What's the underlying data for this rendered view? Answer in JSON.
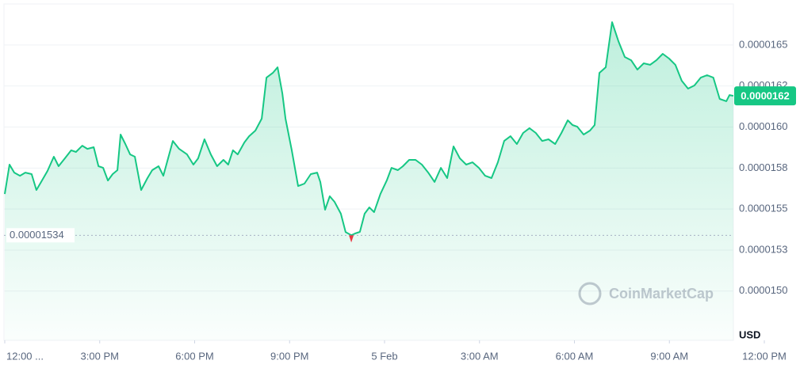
{
  "chart_data": {
    "type": "area",
    "currency": "USD",
    "watermark": "CoinMarketCap",
    "color": "#16c784",
    "low_color": "#ea3943",
    "grid": true,
    "xlim": [
      0,
      24
    ],
    "xticks": [
      {
        "value": 0,
        "label": "12:00 ..."
      },
      {
        "value": 3,
        "label": "3:00 PM"
      },
      {
        "value": 6,
        "label": "6:00 PM"
      },
      {
        "value": 9,
        "label": "9:00 PM"
      },
      {
        "value": 12,
        "label": "5 Feb"
      },
      {
        "value": 15,
        "label": "3:00 AM"
      },
      {
        "value": 18,
        "label": "6:00 AM"
      },
      {
        "value": 21,
        "label": "9:00 AM"
      },
      {
        "value": 24,
        "label": "12:00 PM"
      }
    ],
    "ylim": [
      1.47e-05,
      1.675e-05
    ],
    "yticks": [
      1.65e-05,
      {
        "value": 1.625e-05,
        "label": "0.0000162"
      },
      {
        "value": 1.6e-05,
        "label": "0.0000160"
      },
      {
        "value": 1.575e-05,
        "label": "0.0000158"
      },
      {
        "value": 1.55e-05,
        "label": "0.0000155"
      },
      {
        "value": 1.525e-05,
        "label": "0.0000153"
      },
      {
        "value": 1.5e-05,
        "label": "0.0000150"
      }
    ],
    "low": 1.534e-05,
    "current_price_label": "0.0000162",
    "x": [
      0,
      0.15,
      0.3,
      0.48,
      0.65,
      0.85,
      1,
      1.15,
      1.35,
      1.55,
      1.7,
      1.9,
      2.1,
      2.25,
      2.45,
      2.61,
      2.81,
      2.96,
      3.11,
      3.26,
      3.41,
      3.56,
      3.66,
      3.81,
      3.96,
      4.11,
      4.31,
      4.51,
      4.66,
      4.86,
      5.01,
      5.16,
      5.31,
      5.51,
      5.76,
      5.96,
      6.11,
      6.31,
      6.51,
      6.71,
      6.91,
      7.06,
      7.21,
      7.36,
      7.57,
      7.72,
      7.92,
      8.12,
      8.27,
      8.47,
      8.62,
      8.77,
      8.87,
      9.07,
      9.27,
      9.47,
      9.67,
      9.87,
      9.97,
      10.12,
      10.27,
      10.42,
      10.62,
      10.77,
      10.95,
      11.07,
      11.22,
      11.37,
      11.52,
      11.67,
      11.87,
      12.07,
      12.22,
      12.42,
      12.58,
      12.78,
      12.98,
      13.18,
      13.38,
      13.58,
      13.78,
      13.98,
      14.18,
      14.38,
      14.58,
      14.78,
      14.98,
      15.18,
      15.38,
      15.58,
      15.78,
      15.98,
      16.18,
      16.38,
      16.58,
      16.78,
      16.98,
      17.18,
      17.39,
      17.59,
      17.79,
      17.94,
      18.09,
      18.29,
      18.49,
      18.64,
      18.79,
      18.99,
      19.19,
      19.39,
      19.59,
      19.79,
      19.99,
      20.19,
      20.39,
      20.59,
      20.79,
      20.99,
      21.19,
      21.39,
      21.59,
      21.79,
      21.99,
      22.19,
      22.39,
      22.59,
      22.8,
      22.9,
      23.02
    ],
    "values": [
      1.5592e-05,
      1.5771e-05,
      1.5722e-05,
      1.5703e-05,
      1.5722e-05,
      1.5713e-05,
      1.5616e-05,
      1.5665e-05,
      1.5732e-05,
      1.5819e-05,
      1.5761e-05,
      1.5809e-05,
      1.5858e-05,
      1.5848e-05,
      1.5886e-05,
      1.5867e-05,
      1.5877e-05,
      1.5761e-05,
      1.5751e-05,
      1.5674e-05,
      1.5713e-05,
      1.5737e-05,
      1.5954e-05,
      1.5896e-05,
      1.5833e-05,
      1.5819e-05,
      1.5616e-05,
      1.5689e-05,
      1.5737e-05,
      1.5761e-05,
      1.5703e-05,
      1.5809e-05,
      1.5915e-05,
      1.5867e-05,
      1.5833e-05,
      1.5771e-05,
      1.5809e-05,
      1.5925e-05,
      1.5833e-05,
      1.5761e-05,
      1.58e-05,
      1.5771e-05,
      1.5858e-05,
      1.5833e-05,
      1.5906e-05,
      1.5944e-05,
      1.5978e-05,
      1.6051e-05,
      1.6301e-05,
      1.633e-05,
      1.6364e-05,
      1.6205e-05,
      1.6051e-05,
      1.5858e-05,
      1.564e-05,
      1.5655e-05,
      1.5713e-05,
      1.5722e-05,
      1.5665e-05,
      1.5496e-05,
      1.5578e-05,
      1.5544e-05,
      1.5472e-05,
      1.536e-05,
      1.534e-05,
      1.5351e-05,
      1.5361e-05,
      1.5472e-05,
      1.551e-05,
      1.5481e-05,
      1.5592e-05,
      1.5674e-05,
      1.5751e-05,
      1.5737e-05,
      1.5761e-05,
      1.58e-05,
      1.58e-05,
      1.5771e-05,
      1.5722e-05,
      1.5665e-05,
      1.5751e-05,
      1.5689e-05,
      1.5882e-05,
      1.5809e-05,
      1.5771e-05,
      1.5785e-05,
      1.5751e-05,
      1.5703e-05,
      1.5689e-05,
      1.5785e-05,
      1.5915e-05,
      1.5944e-05,
      1.5896e-05,
      1.5964e-05,
      1.5993e-05,
      1.5964e-05,
      1.5915e-05,
      1.5925e-05,
      1.5896e-05,
      1.5964e-05,
      1.6041e-05,
      1.6012e-05,
      1.6002e-05,
      1.5954e-05,
      1.5978e-05,
      1.6012e-05,
      1.633e-05,
      1.6364e-05,
      1.6639e-05,
      1.6523e-05,
      1.6427e-05,
      1.6407e-05,
      1.635e-05,
      1.6388e-05,
      1.6379e-05,
      1.6407e-05,
      1.6446e-05,
      1.6417e-05,
      1.6379e-05,
      1.6282e-05,
      1.6234e-05,
      1.6253e-05,
      1.6301e-05,
      1.6316e-05,
      1.6301e-05,
      1.6171e-05,
      1.6157e-05,
      1.6195e-05,
      1.619e-05
    ]
  }
}
